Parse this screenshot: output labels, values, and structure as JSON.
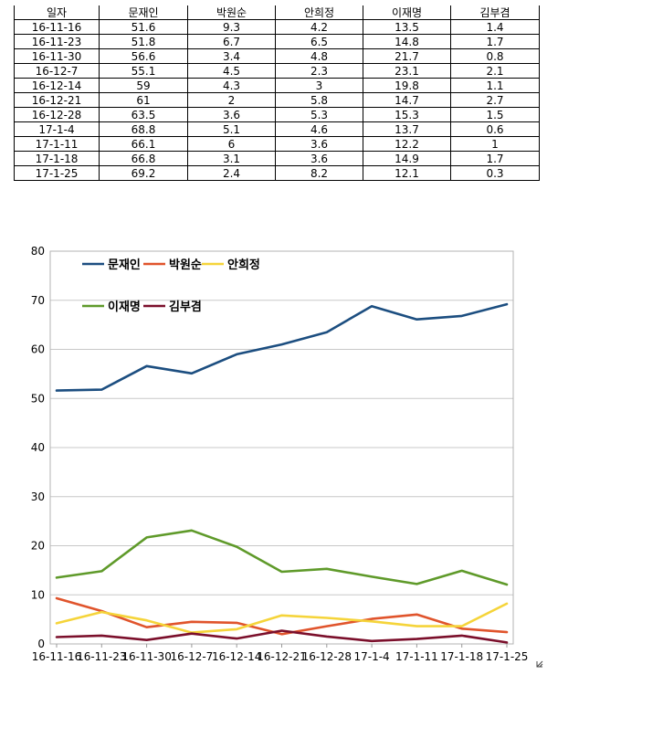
{
  "table": {
    "headers": [
      "일자",
      "문재인",
      "박원순",
      "안희정",
      "이재명",
      "김부겸"
    ],
    "rows": [
      [
        "16-11-16",
        "51.6",
        "9.3",
        "4.2",
        "13.5",
        "1.4"
      ],
      [
        "16-11-23",
        "51.8",
        "6.7",
        "6.5",
        "14.8",
        "1.7"
      ],
      [
        "16-11-30",
        "56.6",
        "3.4",
        "4.8",
        "21.7",
        "0.8"
      ],
      [
        "16-12-7",
        "55.1",
        "4.5",
        "2.3",
        "23.1",
        "2.1"
      ],
      [
        "16-12-14",
        "59",
        "4.3",
        "3",
        "19.8",
        "1.1"
      ],
      [
        "16-12-21",
        "61",
        "2",
        "5.8",
        "14.7",
        "2.7"
      ],
      [
        "16-12-28",
        "63.5",
        "3.6",
        "5.3",
        "15.3",
        "1.5"
      ],
      [
        "17-1-4",
        "68.8",
        "5.1",
        "4.6",
        "13.7",
        "0.6"
      ],
      [
        "17-1-11",
        "66.1",
        "6",
        "3.6",
        "12.2",
        "1"
      ],
      [
        "17-1-18",
        "66.8",
        "3.1",
        "3.6",
        "14.9",
        "1.7"
      ],
      [
        "17-1-25",
        "69.2",
        "2.4",
        "8.2",
        "12.1",
        "0.3"
      ]
    ]
  },
  "chart_data": {
    "type": "line",
    "title": "",
    "xlabel": "",
    "ylabel": "",
    "categories": [
      "16-11-16",
      "16-11-23",
      "16-11-30",
      "16-12-7",
      "16-12-14",
      "16-12-21",
      "16-12-28",
      "17-1-4",
      "17-1-11",
      "17-1-18",
      "17-1-25"
    ],
    "ylim": [
      0,
      80
    ],
    "yticks": [
      0,
      10,
      20,
      30,
      40,
      50,
      60,
      70,
      80
    ],
    "grid": true,
    "legend_position": "top-left",
    "series": [
      {
        "name": "문재인",
        "color": "#1c4e80",
        "values": [
          51.6,
          51.8,
          56.6,
          55.1,
          59,
          61,
          63.5,
          68.8,
          66.1,
          66.8,
          69.2
        ]
      },
      {
        "name": "박원순",
        "color": "#e0542c",
        "values": [
          9.3,
          6.7,
          3.4,
          4.5,
          4.3,
          2,
          3.6,
          5.1,
          6,
          3.1,
          2.4
        ]
      },
      {
        "name": "안희정",
        "color": "#f5d43a",
        "values": [
          4.2,
          6.5,
          4.8,
          2.3,
          3,
          5.8,
          5.3,
          4.6,
          3.6,
          3.6,
          8.2
        ]
      },
      {
        "name": "이재명",
        "color": "#5f9a2a",
        "values": [
          13.5,
          14.8,
          21.7,
          23.1,
          19.8,
          14.7,
          15.3,
          13.7,
          12.2,
          14.9,
          12.1
        ]
      },
      {
        "name": "김부겸",
        "color": "#7b0f2b",
        "values": [
          1.4,
          1.7,
          0.8,
          2.1,
          1.1,
          2.7,
          1.5,
          0.6,
          1,
          1.7,
          0.3
        ]
      }
    ]
  }
}
